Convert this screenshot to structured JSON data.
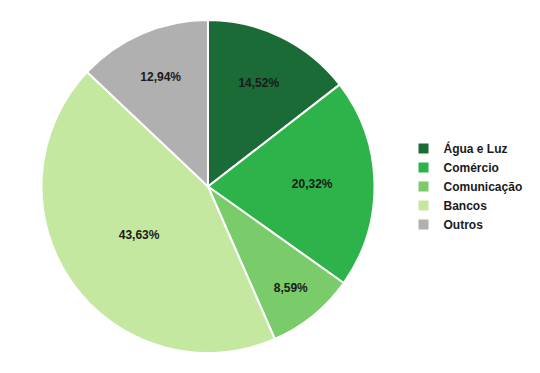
{
  "chart_data": {
    "type": "pie",
    "categories": [
      "Água e Luz",
      "Comércio",
      "Comunicação",
      "Bancos",
      "Outros"
    ],
    "values": [
      14.52,
      20.32,
      8.59,
      43.63,
      12.94
    ],
    "value_labels": [
      "14,52%",
      "20,32%",
      "8,59%",
      "43,63%",
      "12,94%"
    ],
    "colors": [
      "#1a6b35",
      "#2db34a",
      "#7acc6a",
      "#c5e8a0",
      "#b0b0b0"
    ],
    "data_labels": true,
    "legend": "right"
  }
}
